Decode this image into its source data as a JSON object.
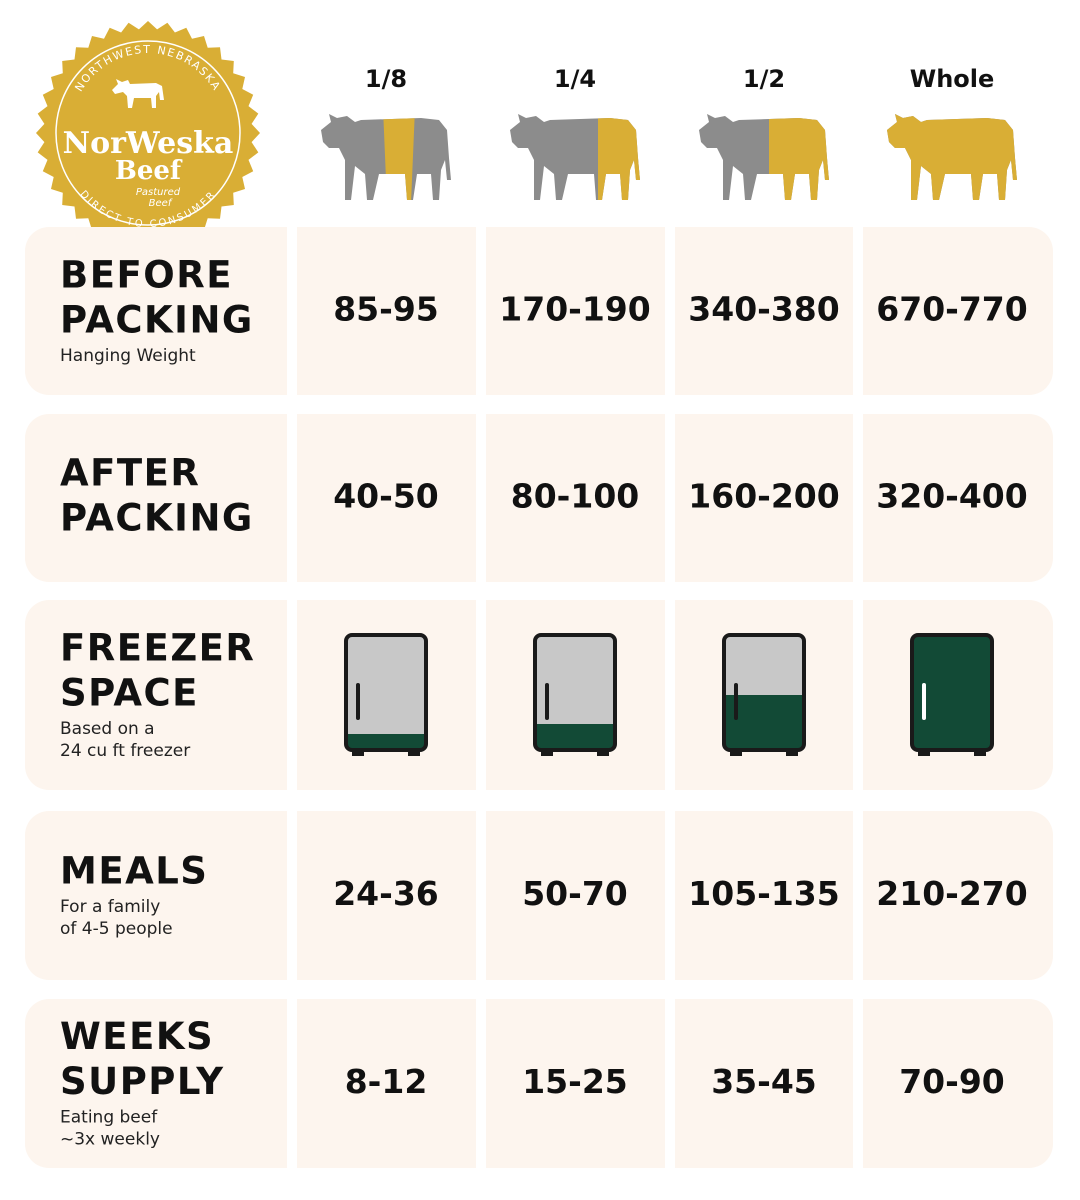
{
  "logo": {
    "top_text": "NORTHWEST NEBRASKA",
    "name_lines": [
      "NorWeska",
      "Beef"
    ],
    "tagline_lines": [
      "Pastured",
      "Beef"
    ],
    "bottom_text": "DIRECT TO CONSUMER"
  },
  "columns": [
    "1/8",
    "1/4",
    "1/2",
    "Whole"
  ],
  "rows": [
    {
      "title_lines": [
        "BEFORE",
        "PACKING"
      ],
      "note_lines": [
        "Hanging Weight"
      ],
      "values": [
        "85-95",
        "170-190",
        "340-380",
        "670-770"
      ]
    },
    {
      "title_lines": [
        "AFTER",
        "PACKING"
      ],
      "values": [
        "40-50",
        "80-100",
        "160-200",
        "320-400"
      ]
    },
    {
      "title_lines": [
        "FREEZER",
        "SPACE"
      ],
      "note_lines": [
        "Based on a",
        "24 cu ft freezer"
      ]
    },
    {
      "title_lines": [
        "MEALS"
      ],
      "note_lines": [
        "For a family",
        "of 4-5 people"
      ],
      "values": [
        "24-36",
        "50-70",
        "105-135",
        "210-270"
      ]
    },
    {
      "title_lines": [
        "WEEKS",
        "SUPPLY"
      ],
      "note_lines": [
        "Eating beef",
        "~3x weekly"
      ],
      "values": [
        "8-12",
        "15-25",
        "35-45",
        "70-90"
      ]
    }
  ]
}
